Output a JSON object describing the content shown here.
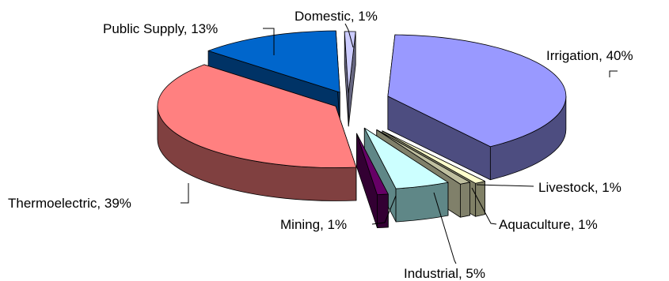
{
  "chart_data": {
    "type": "pie",
    "three_d": true,
    "exploded": true,
    "title": "",
    "label_format": "{name}, {value}%",
    "series": [
      {
        "name": "Irrigation",
        "value": 40,
        "color": "#9999ff",
        "side_color": "#4d4d80"
      },
      {
        "name": "Livestock",
        "value": 1,
        "color": "#ffffcc",
        "side_color": "#808066"
      },
      {
        "name": "Aquaculture",
        "value": 1,
        "color": "#c0c0a0",
        "side_color": "#80806a"
      },
      {
        "name": "Industrial",
        "value": 5,
        "color": "#ccffff",
        "side_color": "#5f8787"
      },
      {
        "name": "Mining",
        "value": 1,
        "color": "#660066",
        "side_color": "#330033"
      },
      {
        "name": "Thermoelectric",
        "value": 39,
        "color": "#ff8080",
        "side_color": "#804040"
      },
      {
        "name": "Public Supply",
        "value": 13,
        "color": "#0066cc",
        "side_color": "#003366"
      },
      {
        "name": "Domestic",
        "value": 1,
        "color": "#ccccff",
        "side_color": "#666680"
      }
    ]
  }
}
